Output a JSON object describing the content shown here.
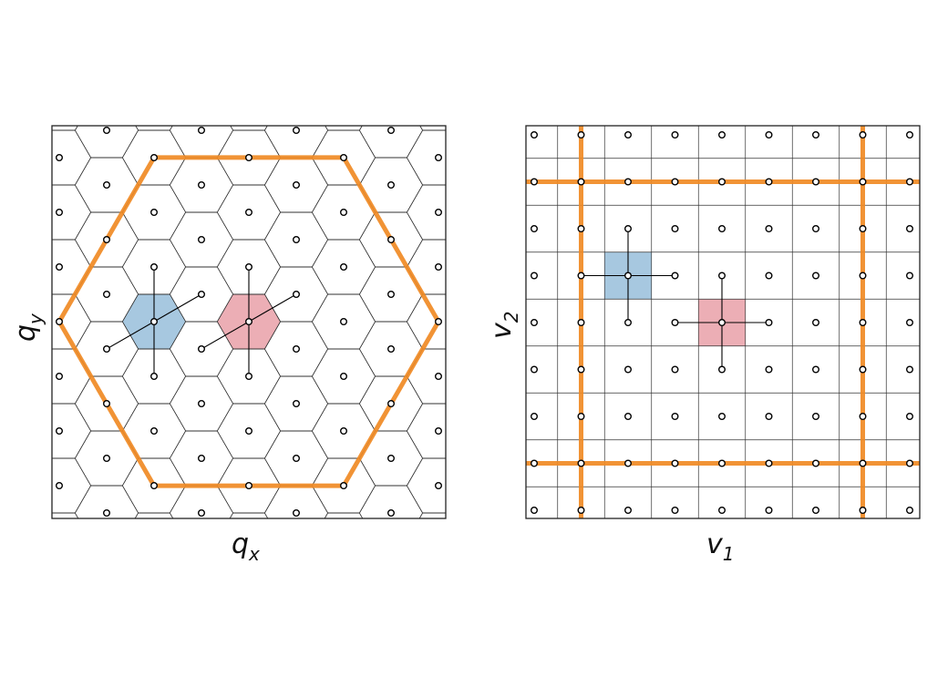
{
  "panels": [
    {
      "id": "hexagonal",
      "xlabel": "q",
      "xlabel_sub": "x",
      "ylabel": "q",
      "ylabel_sub": "y"
    },
    {
      "id": "square",
      "xlabel": "v",
      "xlabel_sub": "1",
      "ylabel": "v",
      "ylabel_sub": "2"
    }
  ],
  "colors": {
    "brillouin_zone": "#f08a24",
    "highlight_a": "#a7c8e0",
    "highlight_b": "#ecaeb5",
    "grid": "#333333",
    "points": "#000000"
  }
}
